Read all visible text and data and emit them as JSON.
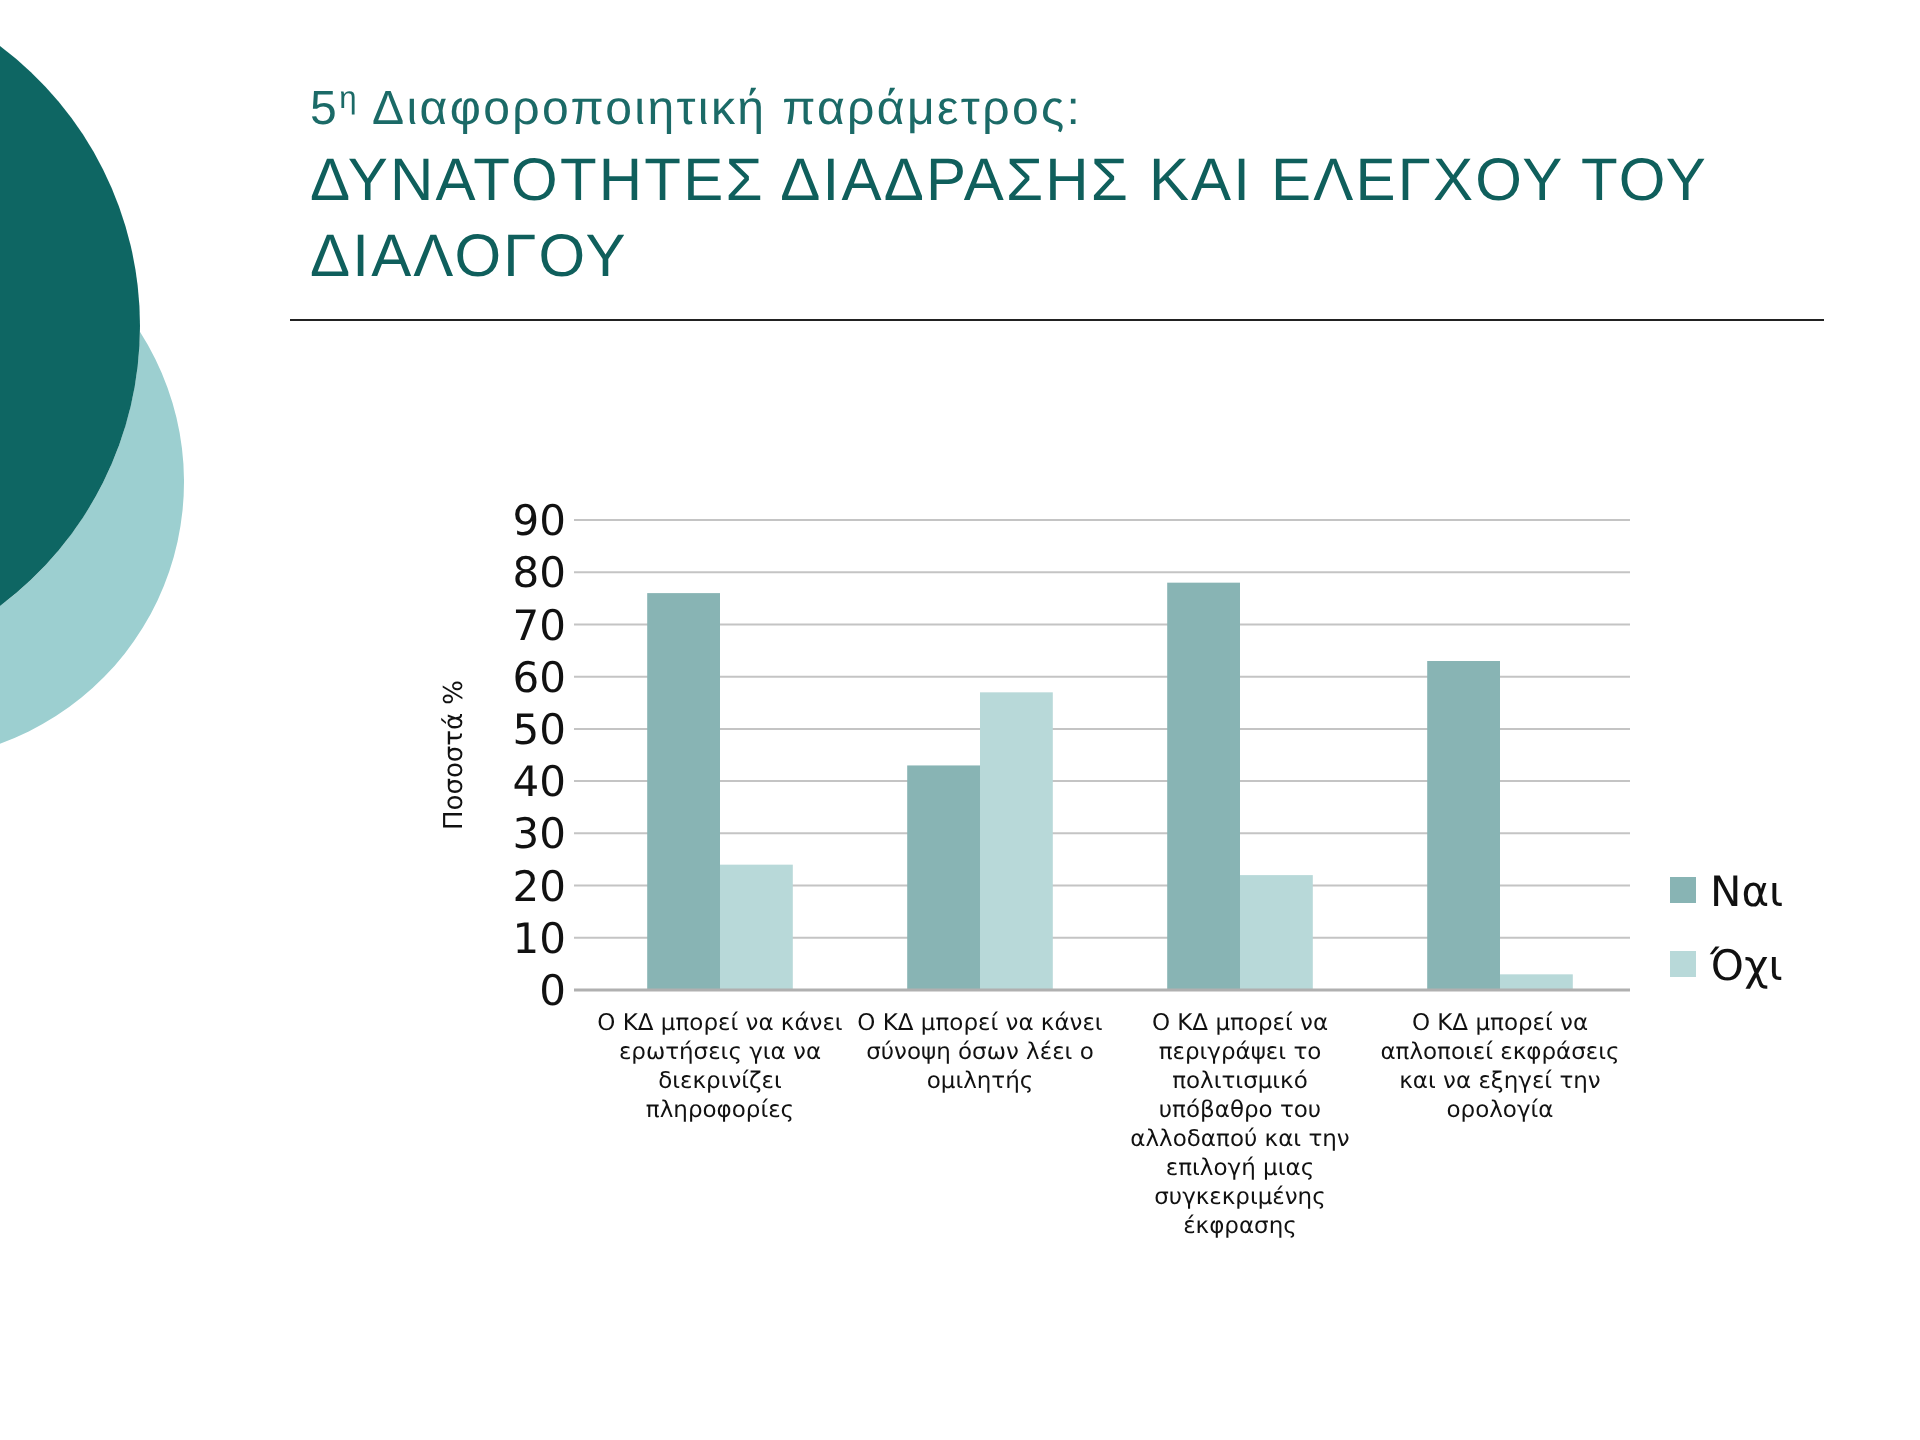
{
  "chart_data": {
    "type": "bar",
    "title": "ΔΥΝΑΤΟΤΗΤΕΣ ΔΙΑΔΡΑΣΗΣ ΚΑΙ ΕΛΕΓΧΟΥ ΤΟΥ ΔΙΑΛΟΓΟΥ",
    "subtitle": "5$^{η}$ Διαφοροποιητική παράμετρος:",
    "ylabel": "Ποσοστά %",
    "categories": [
      "Ο ΚΔ μπορεί να κάνει ερωτήσεις για να διεκρινίζει πληροφορίες",
      "Ο ΚΔ μπορεί να κάνει σύνοψη όσων λέει ο ομιλητής",
      "Ο ΚΔ μπορεί να περιγράψει το πολιτισμικό υπόβαθρο του αλλοδαπού και την επιλογή μιας συγκεκριμένης έκφρασης",
      "Ο ΚΔ μπορεί να απλοποιεί εκφράσεις και να εξηγεί την ορολογία"
    ],
    "series": [
      {
        "name": "Ναι",
        "color": "#88b4b4",
        "values": [
          76,
          43,
          78,
          63
        ]
      },
      {
        "name": "Όχι",
        "color": "#b8d9d9",
        "values": [
          24,
          57,
          22,
          3
        ]
      }
    ],
    "ylim": [
      0,
      90
    ],
    "yticks": [
      0,
      10,
      20,
      30,
      40,
      50,
      60,
      70,
      80,
      90
    ],
    "grid": "y",
    "legend": "right"
  }
}
